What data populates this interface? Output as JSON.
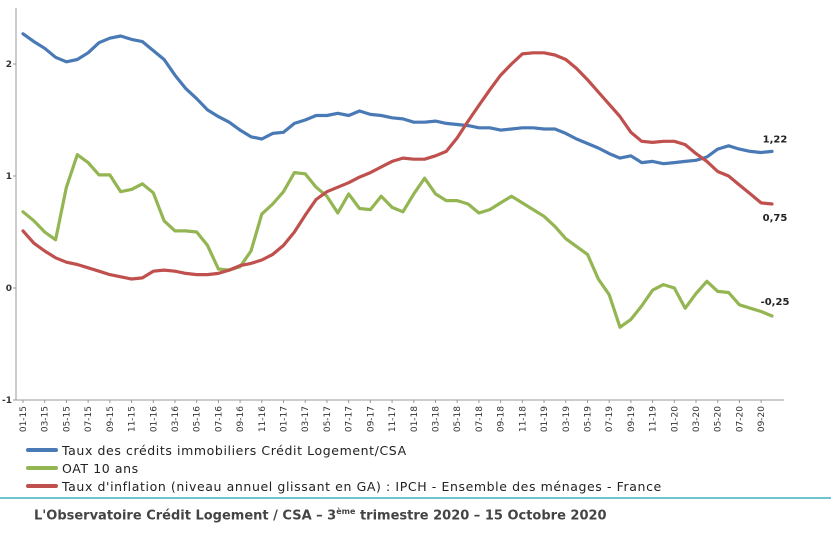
{
  "chart_data": {
    "type": "line",
    "title": "",
    "xlabel": "",
    "ylabel": "",
    "ylim": [
      -1,
      2.5
    ],
    "yticks": [
      -1,
      0,
      1,
      2
    ],
    "ytick_labels": [
      "-1",
      "0",
      "1",
      "2"
    ],
    "grid": false,
    "legend_position": "bottom",
    "x_tick_labels": [
      "01-15",
      "03-15",
      "05-15",
      "07-15",
      "09-15",
      "11-15",
      "01-16",
      "03-16",
      "05-16",
      "07-16",
      "09-16",
      "11-16",
      "01-17",
      "03-17",
      "05-17",
      "07-17",
      "09-17",
      "11-17",
      "01-18",
      "03-18",
      "05-18",
      "07-18",
      "09-18",
      "11-18",
      "01-19",
      "03-19",
      "05-19",
      "07-19",
      "09-19",
      "11-19",
      "01-20",
      "03-20",
      "05-20",
      "07-20",
      "09-20"
    ],
    "series": [
      {
        "name": "Taux des crédits immobiliers Crédit Logement/CSA",
        "color": "#4a7ab5",
        "values": [
          2.27,
          2.2,
          2.14,
          2.06,
          2.02,
          2.04,
          2.1,
          2.19,
          2.23,
          2.25,
          2.22,
          2.2,
          2.12,
          2.04,
          1.9,
          1.78,
          1.69,
          1.59,
          1.53,
          1.48,
          1.41,
          1.35,
          1.33,
          1.38,
          1.39,
          1.47,
          1.5,
          1.54,
          1.54,
          1.56,
          1.54,
          1.58,
          1.55,
          1.54,
          1.52,
          1.51,
          1.48,
          1.48,
          1.49,
          1.47,
          1.46,
          1.45,
          1.43,
          1.43,
          1.41,
          1.42,
          1.43,
          1.43,
          1.42,
          1.42,
          1.38,
          1.33,
          1.29,
          1.25,
          1.2,
          1.16,
          1.18,
          1.12,
          1.13,
          1.11,
          1.12,
          1.13,
          1.14,
          1.17,
          1.24,
          1.27,
          1.24,
          1.22,
          1.21,
          1.22
        ]
      },
      {
        "name": "OAT 10 ans",
        "color": "#93b552",
        "values": [
          0.68,
          0.6,
          0.5,
          0.43,
          0.9,
          1.19,
          1.12,
          1.01,
          1.01,
          0.86,
          0.88,
          0.93,
          0.85,
          0.6,
          0.51,
          0.51,
          0.5,
          0.38,
          0.17,
          0.16,
          0.19,
          0.33,
          0.66,
          0.75,
          0.86,
          1.03,
          1.02,
          0.9,
          0.82,
          0.67,
          0.84,
          0.71,
          0.7,
          0.82,
          0.72,
          0.68,
          0.84,
          0.98,
          0.84,
          0.78,
          0.78,
          0.75,
          0.67,
          0.7,
          0.76,
          0.82,
          0.76,
          0.7,
          0.64,
          0.55,
          0.44,
          0.37,
          0.3,
          0.08,
          -0.06,
          -0.35,
          -0.28,
          -0.16,
          -0.02,
          0.03,
          0.0,
          -0.18,
          -0.05,
          0.06,
          -0.03,
          -0.04,
          -0.15,
          -0.18,
          -0.21,
          -0.25
        ]
      },
      {
        "name": "Taux d'inflation (niveau annuel glissant en GA) : IPCH - Ensemble des ménages - France",
        "color": "#c0504d",
        "values": [
          0.51,
          0.4,
          0.33,
          0.27,
          0.23,
          0.21,
          0.18,
          0.15,
          0.12,
          0.1,
          0.08,
          0.09,
          0.15,
          0.16,
          0.15,
          0.13,
          0.12,
          0.12,
          0.13,
          0.16,
          0.2,
          0.22,
          0.25,
          0.3,
          0.38,
          0.5,
          0.65,
          0.79,
          0.86,
          0.9,
          0.94,
          0.99,
          1.03,
          1.08,
          1.13,
          1.16,
          1.15,
          1.15,
          1.18,
          1.22,
          1.34,
          1.49,
          1.63,
          1.77,
          1.9,
          2.0,
          2.09,
          2.1,
          2.1,
          2.08,
          2.04,
          1.96,
          1.86,
          1.75,
          1.64,
          1.53,
          1.39,
          1.31,
          1.3,
          1.31,
          1.31,
          1.28,
          1.2,
          1.13,
          1.04,
          1.0,
          0.92,
          0.84,
          0.76,
          0.75
        ]
      }
    ],
    "end_labels": [
      "1,22",
      "0,75",
      "-0,25"
    ]
  },
  "footer": {
    "text_before": "L'Observatoire Crédit Logement / CSA – 3",
    "superscript": "ème",
    "text_after": " trimestre 2020 – 15 Octobre 2020"
  }
}
